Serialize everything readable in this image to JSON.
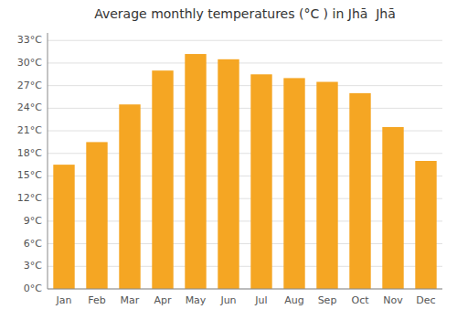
{
  "chart_data": {
    "type": "bar",
    "title": "Average monthly temperatures (°C ) in Jhā  Jhā",
    "categories": [
      "Jan",
      "Feb",
      "Mar",
      "Apr",
      "May",
      "Jun",
      "Jul",
      "Aug",
      "Sep",
      "Oct",
      "Nov",
      "Dec"
    ],
    "values": [
      16.5,
      19.5,
      24.5,
      29.0,
      31.2,
      30.5,
      28.5,
      28.0,
      27.5,
      26.0,
      21.5,
      17.0
    ],
    "color": "#F5A623",
    "ylim": [
      0,
      34
    ],
    "yticks": [
      {
        "value": 0,
        "label": "0°C"
      },
      {
        "value": 3,
        "label": "3°C"
      },
      {
        "value": 6,
        "label": "6°C"
      },
      {
        "value": 9,
        "label": "9°C"
      },
      {
        "value": 12,
        "label": "12°C"
      },
      {
        "value": 15,
        "label": "15°C"
      },
      {
        "value": 18,
        "label": "18°C"
      },
      {
        "value": 21,
        "label": "21°C"
      },
      {
        "value": 24,
        "label": "24°C"
      },
      {
        "value": 27,
        "label": "27°C"
      },
      {
        "value": 30,
        "label": "30°C"
      },
      {
        "value": 33,
        "label": "33°C"
      }
    ],
    "grid": true
  }
}
